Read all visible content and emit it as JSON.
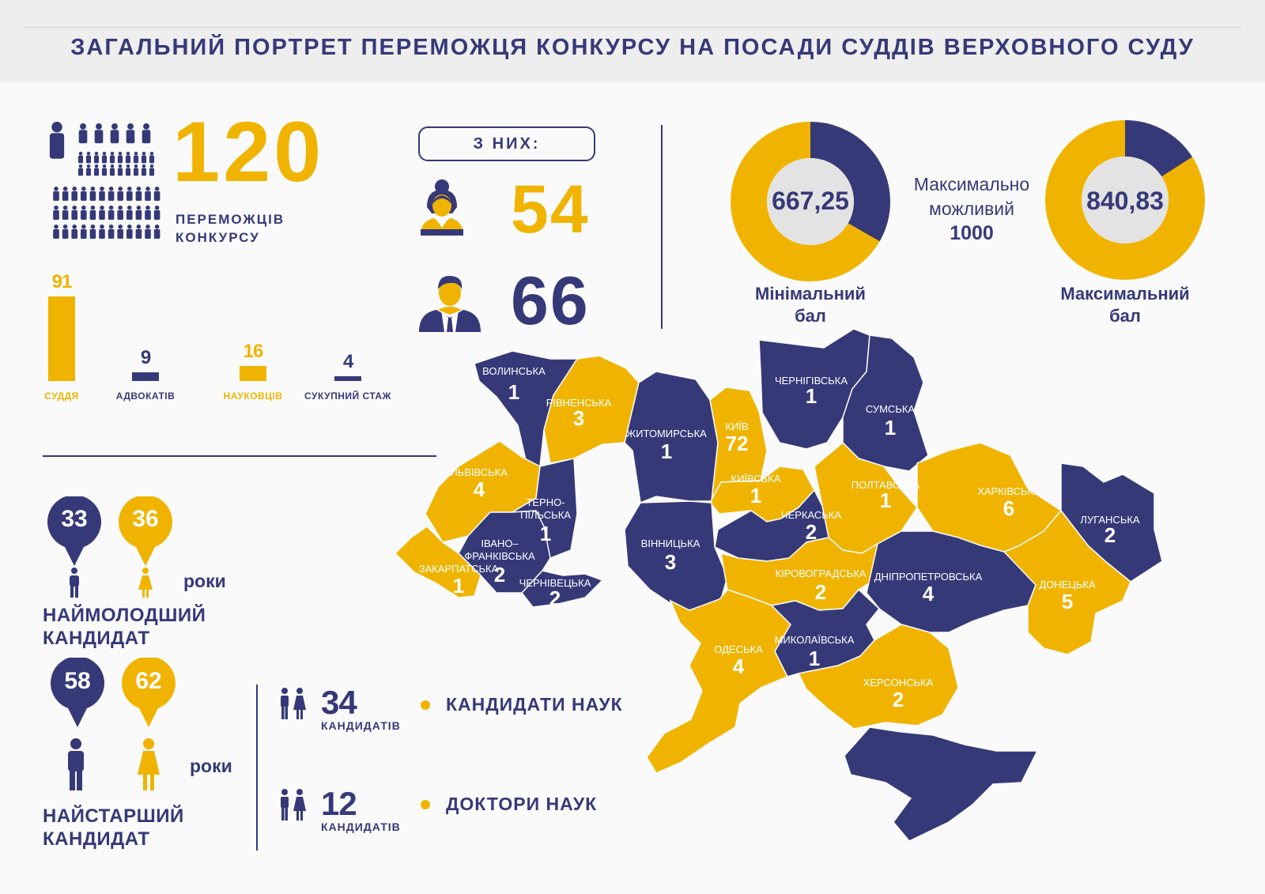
{
  "header": {
    "title": "ЗАГАЛЬНИЙ ПОРТРЕТ ПЕРЕМОЖЦЯ КОНКУРСУ НА ПОСАДИ СУДДІВ ВЕРХОВНОГО СУДУ"
  },
  "winners": {
    "total": "120",
    "label_line1": "ПЕРЕМОЖЦІВ",
    "label_line2": "КОНКУРСУ",
    "icon": "people-grid-icon"
  },
  "professions": [
    {
      "value": "91",
      "label": "СУДДЯ",
      "color": "#f0b400"
    },
    {
      "value": "9",
      "label": "АДВОКАТІВ",
      "color": "#363978"
    },
    {
      "value": "16",
      "label": "НАУКОВЦІВ",
      "color": "#f0b400"
    },
    {
      "value": "4",
      "label": "СУКУПНИЙ СТАЖ",
      "color": "#363978"
    }
  ],
  "gender": {
    "title": "З НИХ:",
    "women": "54",
    "men": "66",
    "woman_icon": "woman-avatar-icon",
    "man_icon": "man-avatar-icon"
  },
  "scores": {
    "min": {
      "value": "667,25",
      "caption_line1": "Мінімальний",
      "caption_line2": "бал",
      "fraction": 0.66725
    },
    "max": {
      "value": "840,83",
      "caption_line1": "Максимальний",
      "caption_line2": "бал",
      "fraction": 0.84083
    },
    "possible_line1": "Максимально",
    "possible_line2": "можливий",
    "possible_value": "1000"
  },
  "youngest": {
    "male_age": "33",
    "female_age": "36",
    "years": "роки",
    "title_line1": "НАЙМОЛОДШИЙ",
    "title_line2": "КАНДИДАТ"
  },
  "oldest": {
    "male_age": "58",
    "female_age": "62",
    "years": "роки",
    "title_line1": "НАЙСТАРШИЙ",
    "title_line2": "КАНДИДАТ"
  },
  "degrees": [
    {
      "count": "34",
      "unit": "КАНДИДАТІВ",
      "label": "КАНДИДАТИ НАУК"
    },
    {
      "count": "12",
      "unit": "КАНДИДАТІВ",
      "label": "ДОКТОРИ НАУК"
    }
  ],
  "colors": {
    "navy": "#363978",
    "gold": "#f0b400",
    "donut_center": "#e3e3e3"
  },
  "map": {
    "regions": [
      {
        "name": "ВОЛИНСЬКА",
        "count": "1",
        "color": "navy"
      },
      {
        "name": "РІВНЕНСЬКА",
        "count": "3",
        "color": "gold"
      },
      {
        "name": "ЖИТОМИРСЬКА",
        "count": "1",
        "color": "navy"
      },
      {
        "name": "КИЇВ",
        "count": "72",
        "color": "gold"
      },
      {
        "name": "ЧЕРНІГІВСЬКА",
        "count": "1",
        "color": "navy"
      },
      {
        "name": "СУМСЬКА",
        "count": "1",
        "color": "navy"
      },
      {
        "name": "ЛЬВІВСЬКА",
        "count": "4",
        "color": "gold"
      },
      {
        "name": "ТЕРНО-",
        "name2": "ПІЛЬСЬКА",
        "count": "1",
        "color": "navy"
      },
      {
        "name": "КИЇВСЬКА",
        "count": "1",
        "color": "gold"
      },
      {
        "name": "ПОЛТАВСЬКА",
        "count": "1",
        "color": "gold"
      },
      {
        "name": "ХАРКІВСЬКА",
        "count": "6",
        "color": "gold"
      },
      {
        "name": "ЛУГАНСЬКА",
        "count": "2",
        "color": "navy"
      },
      {
        "name": "ЧЕРКАСЬКА",
        "count": "2",
        "color": "navy"
      },
      {
        "name": "ІВАНО–",
        "name2": "ФРАНКІВСЬКА",
        "count": "2",
        "color": "navy"
      },
      {
        "name": "ВІННИЦЬКА",
        "count": "3",
        "color": "navy"
      },
      {
        "name": "ЗАКАРПАТСЬКА",
        "count": "1",
        "color": "gold"
      },
      {
        "name": "ЧЕРНІВЕЦЬКА",
        "count": "2",
        "color": "navy"
      },
      {
        "name": "КІРОВОГРАДСЬКА",
        "count": "2",
        "color": "gold"
      },
      {
        "name": "ДНІПРОПЕТРОВСЬКА",
        "count": "4",
        "color": "navy"
      },
      {
        "name": "ДОНЕЦЬКА",
        "count": "5",
        "color": "gold"
      },
      {
        "name": "ОДЕСЬКА",
        "count": "4",
        "color": "gold"
      },
      {
        "name": "МИКОЛАЇВСЬКА",
        "count": "1",
        "color": "navy"
      },
      {
        "name": "ХЕРСОНСЬКА",
        "count": "2",
        "color": "gold"
      }
    ]
  }
}
